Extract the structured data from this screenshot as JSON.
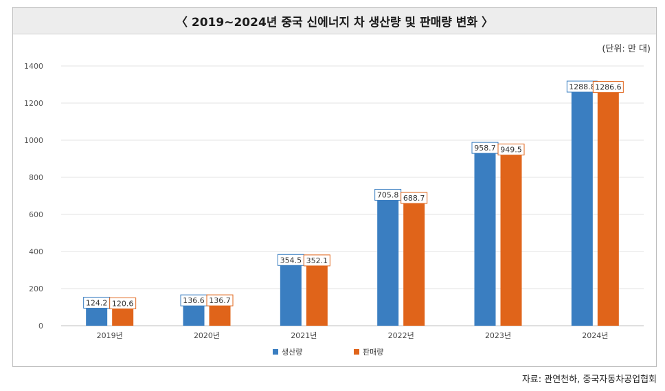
{
  "title": "〈 2019~2024년 중국 신에너지 차 생산량 및 판매량 변화 〉",
  "unit_label": "(단위: 만 대)",
  "source": "자료: 관연천하, 중국자동차공업협회",
  "colors": {
    "production": "#3a7ec1",
    "sales": "#e0641a",
    "grid": "#e3e3e3",
    "axis": "#bfbfbf"
  },
  "chart_data": {
    "type": "bar",
    "categories": [
      "2019년",
      "2020년",
      "2021년",
      "2022년",
      "2023년",
      "2024년"
    ],
    "series": [
      {
        "name": "생산량",
        "values": [
          124.2,
          136.6,
          354.5,
          705.8,
          958.7,
          1288.8
        ]
      },
      {
        "name": "판매량",
        "values": [
          120.6,
          136.7,
          352.1,
          688.7,
          949.5,
          1286.6
        ]
      }
    ],
    "ylim": [
      0,
      1400
    ],
    "yticks": [
      0,
      200,
      400,
      600,
      800,
      1000,
      1200,
      1400
    ],
    "grid": true,
    "legend_position": "bottom",
    "data_labels": true
  }
}
